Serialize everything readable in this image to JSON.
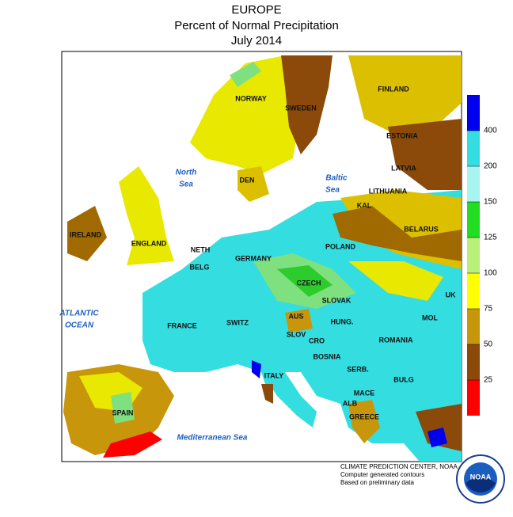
{
  "header": {
    "title": "EUROPE",
    "subtitle": "Percent of Normal Precipitation",
    "date": "July 2014"
  },
  "legend": {
    "ticks": [
      25,
      50,
      75,
      100,
      125,
      150,
      200,
      400
    ]
  },
  "labels": {
    "countries": [
      "NORWAY",
      "SWEDEN",
      "FINLAND",
      "ESTONIA",
      "LATVIA",
      "LITHUANIA",
      "KAL",
      "BELARUS",
      "IRELAND",
      "ENGLAND",
      "DEN",
      "NETH",
      "BELG",
      "GERMANY",
      "POLAND",
      "CZECH",
      "SLOVAK",
      "UK",
      "MOL",
      "FRANCE",
      "SWITZ",
      "AUS",
      "SLOV",
      "CRO",
      "HUNG.",
      "ROMANIA",
      "BOSNIA",
      "SERB.",
      "BULG",
      "ITALY",
      "MACE",
      "ALB",
      "GREECE",
      "SPAIN"
    ],
    "seas": [
      "North",
      "Sea",
      "Baltic",
      "Sea",
      "ATLANTIC",
      "OCEAN",
      "Mediterranean Sea"
    ]
  },
  "credits": [
    "CLIMATE PREDICTION CENTER, NOAA",
    "Computer generated contours",
    "Based on preliminary data"
  ],
  "logo": "NOAA"
}
